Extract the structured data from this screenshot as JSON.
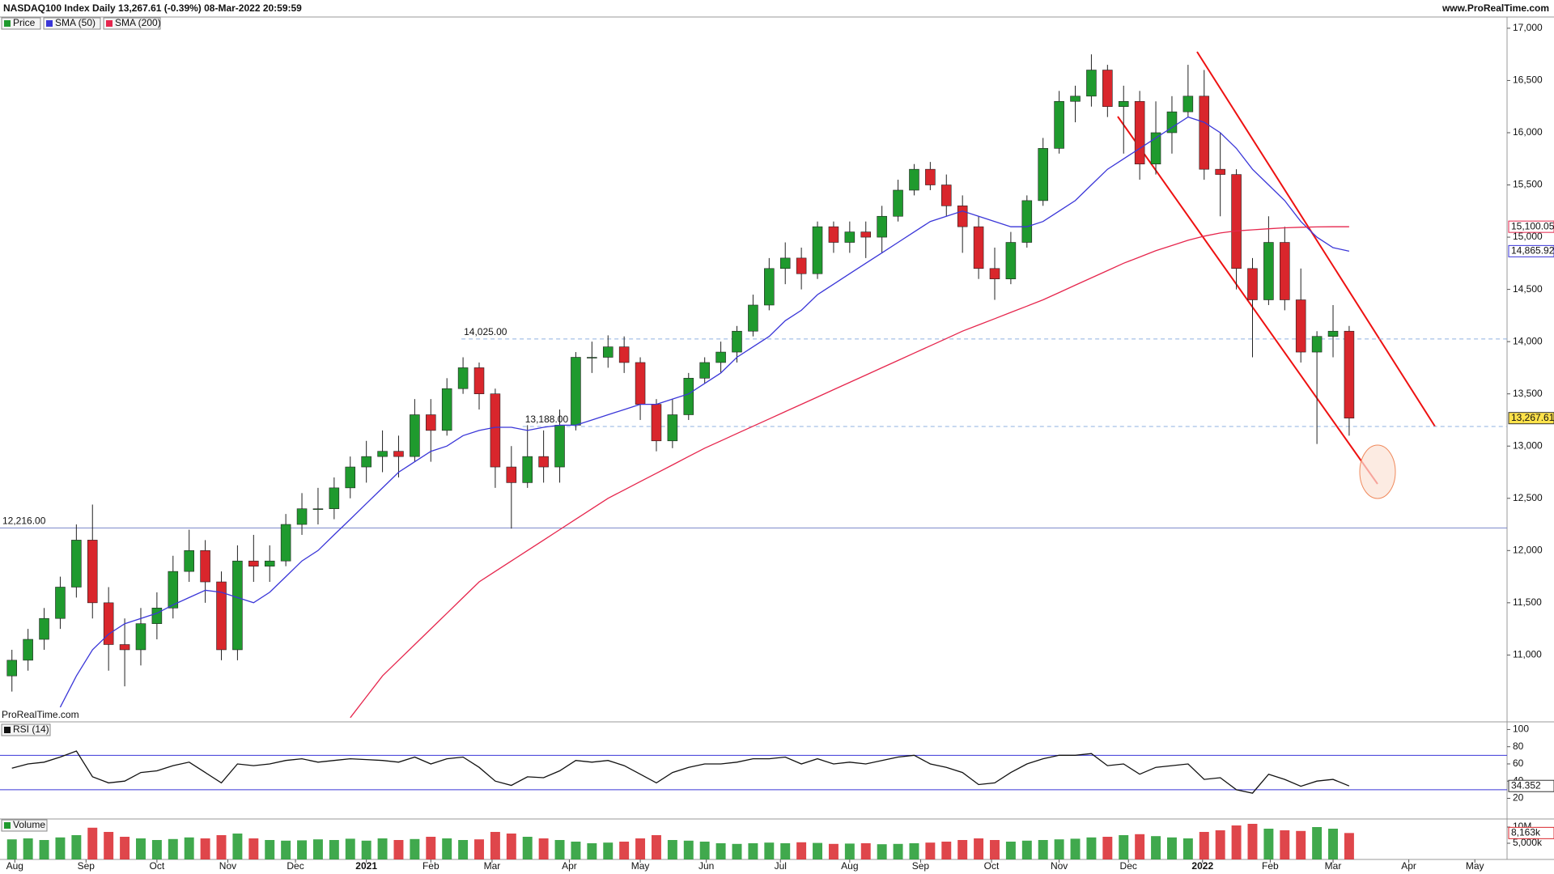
{
  "header": {
    "title": "NASDAQ100 Index Daily 13,267.61 (-0.39%) 08-Mar-2022 20:59:59",
    "source": "www.ProRealTime.com",
    "watermark": "ProRealTime.com"
  },
  "chart_data": [
    {
      "type": "candlestick",
      "name": "Price",
      "up_color": "#1f9a2e",
      "down_color": "#d9262c",
      "last_label": "13,267.61",
      "last_color": "#ffe24a",
      "x": [
        0,
        1,
        2,
        3,
        4,
        5,
        6,
        7,
        8,
        9,
        10,
        11,
        12,
        13,
        14,
        15,
        16,
        17,
        18,
        19,
        20,
        21,
        22,
        23,
        24,
        25,
        26,
        27,
        28,
        29,
        30,
        31,
        32,
        33,
        34,
        35,
        36,
        37,
        38,
        39,
        40,
        41,
        42,
        43,
        44,
        45,
        46,
        47,
        48,
        49,
        50,
        51,
        52,
        53,
        54,
        55,
        56,
        57,
        58,
        59,
        60,
        61,
        62,
        63,
        64,
        65,
        66,
        67,
        68,
        69,
        70,
        71,
        72,
        73,
        74,
        75,
        76,
        77,
        78,
        79,
        80,
        81,
        82,
        83
      ],
      "open": [
        10800,
        10950,
        11150,
        11350,
        11650,
        12100,
        11500,
        11100,
        11050,
        11300,
        11450,
        11800,
        12000,
        11700,
        11050,
        11900,
        11850,
        11900,
        12250,
        12400,
        12400,
        12600,
        12800,
        12900,
        12950,
        12900,
        13300,
        13150,
        13550,
        13750,
        13500,
        12800,
        12650,
        12900,
        12800,
        13200,
        13850,
        13850,
        13950,
        13800,
        13400,
        13050,
        13300,
        13650,
        13800,
        13900,
        14100,
        14350,
        14700,
        14800,
        14650,
        15100,
        14950,
        15050,
        15000,
        15200,
        15450,
        15650,
        15500,
        15300,
        15100,
        14700,
        14600,
        14950,
        15350,
        15850,
        16300,
        16350,
        16600,
        16250,
        16300,
        15700,
        16000,
        16200,
        16350,
        15650,
        15600,
        14700,
        14400,
        14950,
        14400,
        13900,
        14050,
        14100
      ],
      "high": [
        11050,
        11250,
        11450,
        11750,
        12250,
        12440,
        11650,
        11350,
        11450,
        11600,
        11950,
        12200,
        12100,
        11800,
        12050,
        12150,
        12050,
        12350,
        12550,
        12600,
        12700,
        12900,
        13050,
        13150,
        13100,
        13450,
        13450,
        13650,
        13850,
        13800,
        13550,
        13000,
        13200,
        13150,
        13350,
        13900,
        14000,
        14060,
        14050,
        13850,
        13450,
        13450,
        13700,
        13850,
        14000,
        14150,
        14450,
        14800,
        14950,
        14900,
        15150,
        15150,
        15150,
        15150,
        15300,
        15550,
        15700,
        15720,
        15600,
        15400,
        15200,
        14900,
        15050,
        15400,
        15950,
        16400,
        16450,
        16750,
        16650,
        16450,
        16400,
        16300,
        16350,
        16650,
        16600,
        16000,
        15650,
        14800,
        15200,
        15100,
        14700,
        14100,
        14350,
        14150
      ],
      "low": [
        10650,
        10850,
        11050,
        11250,
        11550,
        11350,
        10850,
        10700,
        10900,
        11150,
        11350,
        11700,
        11500,
        10950,
        10950,
        11700,
        11700,
        11850,
        12150,
        12250,
        12300,
        12500,
        12650,
        12750,
        12700,
        12850,
        12850,
        13100,
        13500,
        13350,
        12600,
        12210,
        12600,
        12650,
        12650,
        13150,
        13700,
        13750,
        13700,
        13250,
        12950,
        12980,
        13250,
        13600,
        13700,
        13800,
        14050,
        14300,
        14550,
        14500,
        14600,
        14850,
        14850,
        14800,
        14850,
        15150,
        15400,
        15450,
        15200,
        14850,
        14600,
        14400,
        14550,
        14900,
        15300,
        15800,
        16100,
        16250,
        16150,
        15800,
        15550,
        15600,
        15800,
        16150,
        15550,
        15200,
        14500,
        13850,
        14350,
        14300,
        13800,
        13020,
        13850,
        13100
      ],
      "close": [
        10950,
        11150,
        11350,
        11650,
        12100,
        11500,
        11100,
        11050,
        11300,
        11450,
        11800,
        12000,
        11700,
        11050,
        11900,
        11850,
        11900,
        12250,
        12400,
        12400,
        12600,
        12800,
        12900,
        12950,
        12900,
        13300,
        13150,
        13550,
        13750,
        13500,
        12800,
        12650,
        12900,
        12800,
        13200,
        13850,
        13850,
        13950,
        13800,
        13400,
        13050,
        13300,
        13650,
        13800,
        13900,
        14100,
        14350,
        14700,
        14800,
        14650,
        15100,
        14950,
        15050,
        15000,
        15200,
        15450,
        15650,
        15500,
        15300,
        15100,
        14700,
        14600,
        14950,
        15350,
        15850,
        16300,
        16350,
        16600,
        16250,
        16300,
        15700,
        16000,
        16200,
        16350,
        15650,
        15600,
        14700,
        14400,
        14950,
        14400,
        13900,
        14050,
        14100,
        13267.61
      ],
      "series": [
        {
          "name": "SMA (50)",
          "color": "#3a36d8",
          "last_label": "14,865.92",
          "values": [
            null,
            null,
            null,
            10500,
            10800,
            11050,
            11200,
            11300,
            11350,
            11400,
            11480,
            11550,
            11620,
            11600,
            11550,
            11500,
            11600,
            11750,
            11900,
            12000,
            12150,
            12300,
            12450,
            12600,
            12750,
            12850,
            12950,
            13000,
            13100,
            13150,
            13180,
            13180,
            13150,
            13180,
            13200,
            13200,
            13250,
            13300,
            13350,
            13400,
            13400,
            13450,
            13500,
            13600,
            13700,
            13850,
            13950,
            14050,
            14200,
            14300,
            14450,
            14550,
            14650,
            14750,
            14850,
            14950,
            15050,
            15150,
            15200,
            15250,
            15200,
            15150,
            15100,
            15100,
            15150,
            15250,
            15350,
            15500,
            15650,
            15750,
            15850,
            15950,
            16050,
            16150,
            16100,
            16000,
            15850,
            15650,
            15500,
            15350,
            15150,
            15000,
            14900,
            14865.92
          ]
        },
        {
          "name": "SMA (200)",
          "color": "#e6264d",
          "last_label": "15,100.05",
          "values": [
            null,
            null,
            null,
            null,
            null,
            null,
            null,
            null,
            null,
            null,
            null,
            null,
            null,
            null,
            null,
            null,
            null,
            null,
            null,
            null,
            null,
            10400,
            10600,
            10800,
            10950,
            11100,
            11250,
            11400,
            11550,
            11700,
            11800,
            11900,
            12000,
            12100,
            12200,
            12300,
            12400,
            12500,
            12580,
            12660,
            12740,
            12820,
            12900,
            12980,
            13050,
            13120,
            13190,
            13260,
            13330,
            13400,
            13470,
            13540,
            13610,
            13680,
            13750,
            13820,
            13890,
            13960,
            14030,
            14100,
            14160,
            14220,
            14280,
            14340,
            14400,
            14470,
            14540,
            14610,
            14680,
            14750,
            14810,
            14870,
            14920,
            14970,
            15010,
            15040,
            15060,
            15070,
            15080,
            15090,
            15095,
            15098,
            15100,
            15100.05
          ]
        }
      ],
      "hlines": [
        {
          "value": 14025,
          "label": "14,025.00",
          "x0": 27.9,
          "style": "dashed"
        },
        {
          "value": 13188,
          "label": "13,188.00",
          "x0": 31.7,
          "style": "dashed"
        },
        {
          "value": 12216,
          "label": "12,216.00",
          "style": "solid"
        }
      ],
      "xlim": [
        -0.74,
        92.8
      ],
      "ylim": [
        10360,
        17100
      ],
      "yticks": [
        {
          "value": 11000,
          "label": "11,000"
        },
        {
          "value": 11500,
          "label": "11,500"
        },
        {
          "value": 12000,
          "label": "12,000"
        },
        {
          "value": 12500,
          "label": "12,500"
        },
        {
          "value": 13000,
          "label": "13,000"
        },
        {
          "value": 13500,
          "label": "13,500"
        },
        {
          "value": 14000,
          "label": "14,000"
        },
        {
          "value": 14500,
          "label": "14,500"
        },
        {
          "value": 15000,
          "label": "15,000"
        },
        {
          "value": 15500,
          "label": "15,500"
        },
        {
          "value": 16000,
          "label": "16,000"
        },
        {
          "value": 16500,
          "label": "16,500"
        },
        {
          "value": 17000,
          "label": "17,000"
        }
      ],
      "xticks": [
        {
          "value": 0.18,
          "label": "Aug"
        },
        {
          "value": 4.6,
          "label": "Sep"
        },
        {
          "value": 9.0,
          "label": "Oct"
        },
        {
          "value": 13.4,
          "label": "Nov"
        },
        {
          "value": 17.6,
          "label": "Dec"
        },
        {
          "value": 22.0,
          "label": "2021"
        },
        {
          "value": 26.0,
          "label": "Feb"
        },
        {
          "value": 29.8,
          "label": "Mar"
        },
        {
          "value": 34.6,
          "label": "Apr"
        },
        {
          "value": 39.0,
          "label": "May"
        },
        {
          "value": 43.1,
          "label": "Jun"
        },
        {
          "value": 47.7,
          "label": "Jul"
        },
        {
          "value": 52.0,
          "label": "Aug"
        },
        {
          "value": 56.4,
          "label": "Sep"
        },
        {
          "value": 60.8,
          "label": "Oct"
        },
        {
          "value": 65.0,
          "label": "Nov"
        },
        {
          "value": 69.3,
          "label": "Dec"
        },
        {
          "value": 73.9,
          "label": "2022"
        },
        {
          "value": 78.1,
          "label": "Feb"
        },
        {
          "value": 82.0,
          "label": "Mar"
        },
        {
          "value": 86.7,
          "label": "Apr"
        },
        {
          "value": 90.8,
          "label": "May"
        }
      ]
    },
    {
      "type": "line",
      "name": "RSI (14)",
      "color": "#111111",
      "band_color": "#3a36d8",
      "bands": [
        30,
        70
      ],
      "ylim": [
        -4,
        107
      ],
      "yticks": [
        20,
        40,
        60,
        80,
        100
      ],
      "values": [
        55,
        60,
        62,
        68,
        75,
        45,
        38,
        40,
        50,
        52,
        58,
        62,
        50,
        38,
        60,
        58,
        60,
        64,
        66,
        62,
        64,
        66,
        65,
        64,
        62,
        68,
        60,
        66,
        68,
        56,
        40,
        35,
        45,
        44,
        52,
        64,
        62,
        64,
        58,
        48,
        38,
        50,
        56,
        60,
        60,
        62,
        66,
        66,
        68,
        60,
        66,
        60,
        62,
        60,
        64,
        68,
        70,
        60,
        56,
        50,
        36,
        38,
        50,
        60,
        66,
        70,
        70,
        72,
        58,
        60,
        48,
        56,
        58,
        60,
        42,
        44,
        30,
        26,
        48,
        42,
        34,
        40,
        42,
        34.352
      ]
    },
    {
      "type": "bar",
      "name": "Volume",
      "last_label": "8,163k",
      "ylim": [
        0,
        12000
      ],
      "yticks": [
        {
          "value": 5000,
          "label": "5,000k"
        },
        {
          "value": 10000,
          "label": "10M"
        }
      ],
      "values": [
        6200,
        6500,
        6000,
        6800,
        7500,
        9800,
        8500,
        7000,
        6500,
        6000,
        6300,
        6800,
        6500,
        7500,
        8000,
        6500,
        6000,
        5800,
        5900,
        6200,
        6000,
        6400,
        5800,
        6500,
        6000,
        6300,
        7000,
        6500,
        6000,
        6200,
        8500,
        8000,
        7000,
        6500,
        6000,
        5500,
        5000,
        5200,
        5500,
        6500,
        7500,
        6000,
        5800,
        5500,
        5000,
        4800,
        5000,
        5200,
        5000,
        5300,
        5100,
        4800,
        4900,
        5000,
        4700,
        4800,
        5000,
        5200,
        5500,
        6000,
        6500,
        6000,
        5500,
        5800,
        6000,
        6200,
        6400,
        6800,
        7000,
        7500,
        7800,
        7200,
        6800,
        6500,
        8500,
        9000,
        10500,
        11000,
        9500,
        9000,
        8800,
        10000,
        9500,
        8163
      ]
    }
  ]
}
